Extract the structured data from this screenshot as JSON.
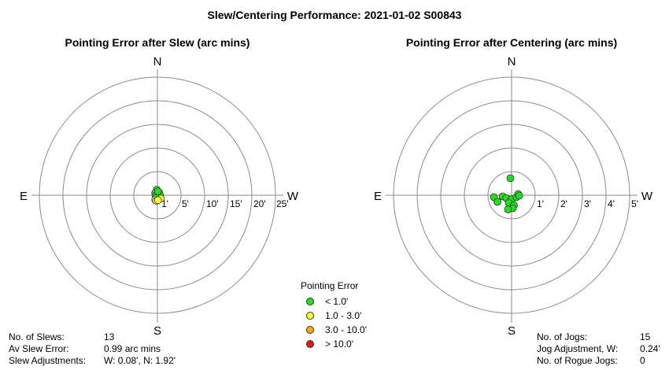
{
  "page_title": "Slew/Centering Performance: 2021-01-02 S00843",
  "colors": {
    "green": "#22dd22",
    "yellow": "#ffff33",
    "orange": "#ffaa00",
    "red": "#ee1111"
  },
  "chart_data": [
    {
      "type": "polar-scatter",
      "title": "Pointing Error after Slew (arc mins)",
      "directions": {
        "n": "N",
        "s": "S",
        "e": "E",
        "w": "W"
      },
      "rings": [
        5,
        10,
        15,
        20,
        25
      ],
      "ring_labels": [
        "1'",
        "5'",
        "10'",
        "15'",
        "20'",
        "25'"
      ],
      "scale": "nonlinear",
      "points": [
        {
          "w": -0.1,
          "n": 1.0,
          "category": "green"
        },
        {
          "w": -0.4,
          "n": 0.4,
          "category": "green"
        },
        {
          "w": 0.3,
          "n": 0.5,
          "category": "green"
        },
        {
          "w": 0.0,
          "n": 0.1,
          "category": "green"
        },
        {
          "w": -0.3,
          "n": -0.1,
          "category": "green"
        },
        {
          "w": 0.2,
          "n": -0.2,
          "category": "green"
        },
        {
          "w": 0.5,
          "n": 0.0,
          "category": "green"
        },
        {
          "w": -0.2,
          "n": -0.4,
          "category": "green"
        },
        {
          "w": 0.1,
          "n": 0.7,
          "category": "green"
        },
        {
          "w": 0.6,
          "n": -0.6,
          "category": "yellow"
        },
        {
          "w": -0.4,
          "n": -0.8,
          "category": "yellow"
        },
        {
          "w": -0.2,
          "n": -1.0,
          "category": "yellow"
        },
        {
          "w": 0.1,
          "n": -0.9,
          "category": "yellow"
        }
      ]
    },
    {
      "type": "polar-scatter",
      "title": "Pointing Error after Centering (arc mins)",
      "directions": {
        "n": "N",
        "s": "S",
        "e": "E",
        "w": "W"
      },
      "rings": [
        1,
        2,
        3,
        4,
        5
      ],
      "ring_labels": [
        "1'",
        "2'",
        "3'",
        "4'",
        "5'"
      ],
      "scale": "linear",
      "points": [
        {
          "w": -0.05,
          "n": 0.72,
          "category": "green"
        },
        {
          "w": -0.75,
          "n": -0.08,
          "category": "green"
        },
        {
          "w": -0.38,
          "n": -0.05,
          "category": "green"
        },
        {
          "w": -0.6,
          "n": -0.28,
          "category": "green"
        },
        {
          "w": -0.22,
          "n": -0.12,
          "category": "green"
        },
        {
          "w": 0.0,
          "n": -0.18,
          "category": "green"
        },
        {
          "w": 0.2,
          "n": -0.08,
          "category": "green"
        },
        {
          "w": 0.28,
          "n": 0.05,
          "category": "green"
        },
        {
          "w": 0.32,
          "n": -0.02,
          "category": "green"
        },
        {
          "w": -0.12,
          "n": -0.32,
          "category": "green"
        },
        {
          "w": 0.1,
          "n": -0.42,
          "category": "green"
        },
        {
          "w": 0.05,
          "n": -0.55,
          "category": "green"
        },
        {
          "w": -0.15,
          "n": -0.6,
          "category": "green"
        }
      ]
    }
  ],
  "legend": {
    "title": "Pointing Error",
    "items": [
      {
        "label": "< 1.0'",
        "color": "#22dd22"
      },
      {
        "label": "1.0 - 3.0'",
        "color": "#ffff33"
      },
      {
        "label": "3.0 - 10.0'",
        "color": "#ffaa00"
      },
      {
        "label": "> 10.0'",
        "color": "#ee1111"
      }
    ]
  },
  "slew_stats": [
    {
      "label": "No. of Slews:",
      "value": "13"
    },
    {
      "label": "Av Slew Error:",
      "value": "0.99 arc mins"
    },
    {
      "label": "Slew Adjustments:",
      "value": "W: 0.08', N: 1.92'"
    }
  ],
  "jog_stats": [
    {
      "label": "No. of Jogs:",
      "value": "15"
    },
    {
      "label": "Jog Adjustment, W:",
      "value": "0.24'"
    },
    {
      "label": "No. of Rogue Jogs:",
      "value": "0"
    }
  ]
}
